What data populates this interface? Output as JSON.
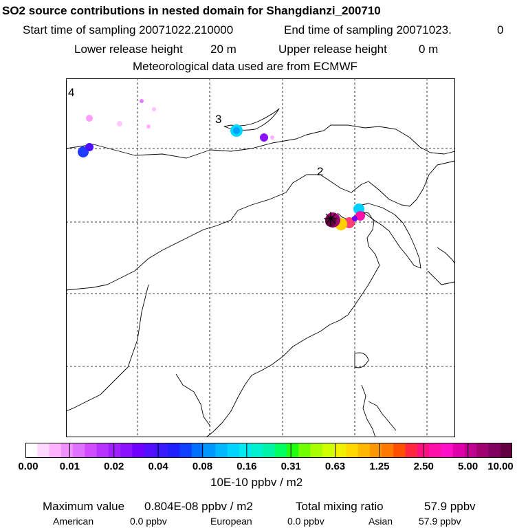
{
  "title": "SO2 source contributions in nested domain for Shangdianzi_200710",
  "sampling": {
    "start_label": "Start time of sampling 20071022.210000",
    "end_label": "End time of sampling 20071023.",
    "end_value": "0"
  },
  "release": {
    "lower_label": "Lower release height",
    "lower_value": "20 m",
    "upper_label": "Upper release height",
    "upper_value": "0 m"
  },
  "meteo": "Meteorological data used are from ECMWF",
  "map": {
    "region_labels": [
      "4",
      "3",
      "2"
    ],
    "receptor_marker": "star-icon"
  },
  "colorbar": {
    "tick_labels": [
      "0.00",
      "0.01",
      "0.02",
      "0.04",
      "0.08",
      "0.16",
      "0.31",
      "0.63",
      "1.25",
      "2.50",
      "5.00",
      "10.00"
    ],
    "colors": [
      "#ffffff",
      "#ffd9ff",
      "#ffb3ff",
      "#f090ff",
      "#e070ff",
      "#cf4dff",
      "#b733ff",
      "#9f1fff",
      "#8a12ff",
      "#7000ff",
      "#5210ff",
      "#3a1aff",
      "#2020ff",
      "#1040ff",
      "#0070ff",
      "#0098ff",
      "#00b8ff",
      "#00d4ff",
      "#00e8f0",
      "#00f0d0",
      "#00f5a8",
      "#00ff60",
      "#20ff10",
      "#70ff00",
      "#a8ff00",
      "#d0ff00",
      "#f0f000",
      "#ffd800",
      "#ffb800",
      "#ff9800",
      "#ff7800",
      "#ff5000",
      "#ff2840",
      "#ff1080",
      "#ff10a8",
      "#ff10c8",
      "#e000a8",
      "#c00090",
      "#a00070",
      "#800060",
      "#600040"
    ],
    "unit_label": "10E-10 ppbv / m2"
  },
  "summary": {
    "max_label": "Maximum value",
    "max_value": "0.804E-08 ppbv / m2",
    "total_label": "Total mixing ratio",
    "total_value": "57.9 ppbv",
    "american_label": "American",
    "american_value": "0.0 ppbv",
    "european_label": "European",
    "european_value": "0.0 ppbv",
    "asian_label": "Asian",
    "asian_value": "57.9 ppbv"
  }
}
